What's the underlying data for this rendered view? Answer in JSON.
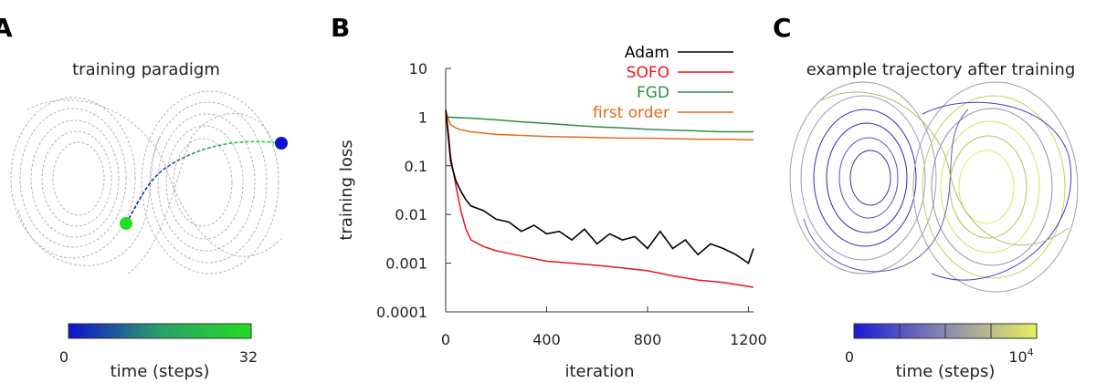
{
  "panels": {
    "a": {
      "letter": "A",
      "title": "training paradigm",
      "colorbar": {
        "min_label": "0",
        "max_label": "32",
        "label": "time (steps)",
        "colors": [
          "#1010d0",
          "#2aa06a",
          "#22dd22"
        ]
      }
    },
    "b": {
      "letter": "B"
    },
    "c": {
      "letter": "C",
      "title": "example trajectory after training",
      "colorbar": {
        "min_label": "0",
        "max_base": "10",
        "max_exp": "4",
        "label": "time (steps)",
        "colors": [
          "#1a1ad8",
          "#8a8ab0",
          "#e8f060"
        ]
      }
    }
  },
  "colors": {
    "Adam": "#000000",
    "SOFO": "#e8161b",
    "FGD": "#2e8b47",
    "first order": "#e06b1a"
  },
  "chart_data": {
    "type": "line",
    "xlabel": "iteration",
    "ylabel": "training loss",
    "xlim": [
      0,
      1220
    ],
    "ylim": [
      0.0001,
      10
    ],
    "yscale": "log",
    "xticks": [
      0,
      400,
      800,
      1200
    ],
    "xtick_labels": [
      "0",
      "400",
      "800",
      "1200"
    ],
    "yticks": [
      10,
      1,
      0.1,
      0.01,
      0.001,
      0.0001
    ],
    "ytick_labels": [
      "10",
      "1",
      "0.1",
      "0.01",
      "0.001",
      "0.0001"
    ],
    "legend_position": "top-right",
    "series": [
      {
        "name": "Adam",
        "x": [
          0,
          10,
          20,
          40,
          60,
          80,
          100,
          150,
          200,
          250,
          300,
          350,
          400,
          450,
          500,
          550,
          600,
          650,
          700,
          750,
          800,
          850,
          900,
          950,
          1000,
          1050,
          1100,
          1150,
          1200,
          1220
        ],
        "y": [
          1.4,
          0.4,
          0.12,
          0.05,
          0.03,
          0.02,
          0.015,
          0.012,
          0.008,
          0.007,
          0.0045,
          0.006,
          0.004,
          0.0045,
          0.003,
          0.005,
          0.0025,
          0.004,
          0.003,
          0.0035,
          0.002,
          0.0045,
          0.002,
          0.003,
          0.0015,
          0.0025,
          0.002,
          0.0015,
          0.001,
          0.002
        ]
      },
      {
        "name": "SOFO",
        "x": [
          0,
          10,
          20,
          40,
          60,
          80,
          100,
          150,
          200,
          300,
          400,
          500,
          600,
          700,
          800,
          900,
          1000,
          1100,
          1220
        ],
        "y": [
          1.4,
          0.5,
          0.15,
          0.04,
          0.012,
          0.005,
          0.003,
          0.0022,
          0.0018,
          0.0014,
          0.0011,
          0.001,
          0.0009,
          0.0008,
          0.0007,
          0.00055,
          0.00045,
          0.0004,
          0.00032
        ]
      },
      {
        "name": "FGD",
        "x": [
          0,
          100,
          200,
          300,
          400,
          500,
          600,
          700,
          800,
          900,
          1000,
          1100,
          1220
        ],
        "y": [
          1.0,
          0.95,
          0.88,
          0.8,
          0.74,
          0.68,
          0.63,
          0.6,
          0.56,
          0.54,
          0.52,
          0.5,
          0.5
        ]
      },
      {
        "name": "first order",
        "x": [
          0,
          10,
          20,
          40,
          60,
          100,
          200,
          300,
          400,
          500,
          600,
          700,
          800,
          900,
          1000,
          1100,
          1220
        ],
        "y": [
          1.4,
          0.9,
          0.7,
          0.6,
          0.55,
          0.5,
          0.44,
          0.42,
          0.4,
          0.39,
          0.38,
          0.37,
          0.37,
          0.36,
          0.35,
          0.35,
          0.34
        ]
      }
    ]
  }
}
